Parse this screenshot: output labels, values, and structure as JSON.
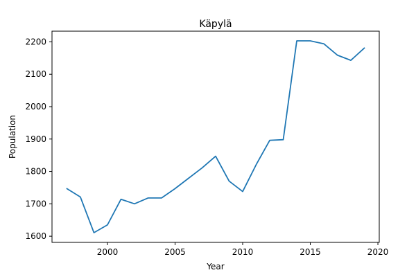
{
  "chart_data": {
    "type": "line",
    "title": "Käpylä",
    "xlabel": "Year",
    "ylabel": "Population",
    "x": [
      1997,
      1998,
      1999,
      2000,
      2001,
      2002,
      2003,
      2004,
      2005,
      2006,
      2007,
      2008,
      2009,
      2010,
      2011,
      2012,
      2013,
      2014,
      2015,
      2016,
      2017,
      2018,
      2019
    ],
    "series": [
      {
        "values": [
          1747,
          1721,
          1611,
          1635,
          1714,
          1700,
          1718,
          1718,
          1747,
          1779,
          1811,
          1847,
          1770,
          1738,
          1821,
          1896,
          1898,
          2203,
          2203,
          2194,
          2159,
          2143,
          2181
        ],
        "color": "#1f77b4"
      }
    ],
    "xlim": [
      1995.9,
      2020.1
    ],
    "ylim": [
      1581,
      2233
    ],
    "xticks": [
      2000,
      2005,
      2010,
      2015,
      2020
    ],
    "yticks": [
      1600,
      1700,
      1800,
      1900,
      2000,
      2100,
      2200
    ],
    "grid": false,
    "legend": "none"
  }
}
